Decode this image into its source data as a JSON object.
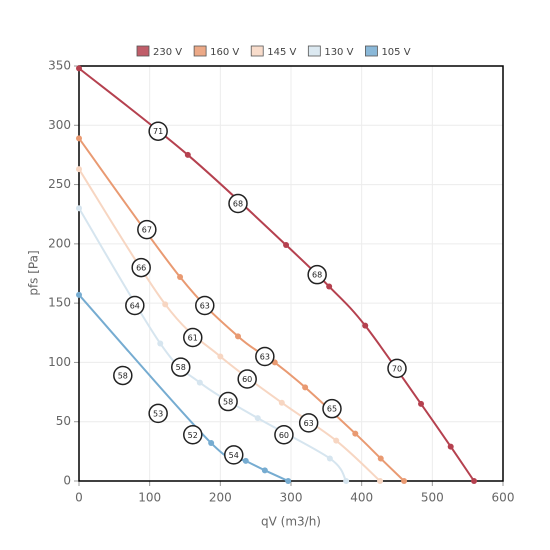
{
  "chart_data": {
    "type": "line",
    "xlabel": "qV (m3/h)",
    "ylabel": "pfs [Pa]",
    "xlim": [
      0,
      600
    ],
    "ylim": [
      0,
      350
    ],
    "xticks": [
      0,
      100,
      200,
      300,
      400,
      500,
      600
    ],
    "yticks": [
      0,
      50,
      100,
      150,
      200,
      250,
      300,
      350
    ],
    "grid": true,
    "legend": "top",
    "series": [
      {
        "name": "230 V",
        "color": "#b5414f",
        "x": [
          0,
          154,
          293,
          354,
          405,
          484,
          526,
          559
        ],
        "values": [
          348,
          275,
          199,
          164,
          131,
          65,
          29,
          0
        ]
      },
      {
        "name": "160 V",
        "color": "#e99a72",
        "x": [
          0,
          143,
          225,
          277,
          320,
          391,
          427,
          460
        ],
        "values": [
          289,
          172,
          122,
          100,
          79,
          40,
          19,
          0
        ]
      },
      {
        "name": "145 V",
        "color": "#f7d6c2",
        "x": [
          0,
          122,
          200,
          287,
          364,
          426
        ],
        "values": [
          263,
          149,
          105,
          66,
          34,
          0
        ]
      },
      {
        "name": "130 V",
        "color": "#d6e5ef",
        "x": [
          0,
          115,
          171,
          253,
          355,
          378
        ],
        "values": [
          230,
          116,
          83,
          53,
          19,
          0
        ]
      },
      {
        "name": "105 V",
        "color": "#76acd1",
        "x": [
          0,
          187,
          236,
          263,
          296
        ],
        "values": [
          157,
          32,
          17,
          9,
          0
        ]
      }
    ],
    "annotations": [
      {
        "x": 112,
        "y": 295,
        "text": "71"
      },
      {
        "x": 225,
        "y": 234,
        "text": "68"
      },
      {
        "x": 337,
        "y": 174,
        "text": "68"
      },
      {
        "x": 450,
        "y": 95,
        "text": "70"
      },
      {
        "x": 96,
        "y": 212,
        "text": "67"
      },
      {
        "x": 178,
        "y": 148,
        "text": "63"
      },
      {
        "x": 263,
        "y": 105,
        "text": "63"
      },
      {
        "x": 358,
        "y": 61,
        "text": "65"
      },
      {
        "x": 88,
        "y": 180,
        "text": "66"
      },
      {
        "x": 161,
        "y": 121,
        "text": "61"
      },
      {
        "x": 238,
        "y": 86,
        "text": "60"
      },
      {
        "x": 325,
        "y": 49,
        "text": "63"
      },
      {
        "x": 79,
        "y": 148,
        "text": "64"
      },
      {
        "x": 144,
        "y": 96,
        "text": "58"
      },
      {
        "x": 211,
        "y": 67,
        "text": "58"
      },
      {
        "x": 290,
        "y": 39,
        "text": "60"
      },
      {
        "x": 62,
        "y": 89,
        "text": "58"
      },
      {
        "x": 112,
        "y": 57,
        "text": "53"
      },
      {
        "x": 161,
        "y": 39,
        "text": "52"
      },
      {
        "x": 219,
        "y": 22,
        "text": "54"
      }
    ]
  }
}
